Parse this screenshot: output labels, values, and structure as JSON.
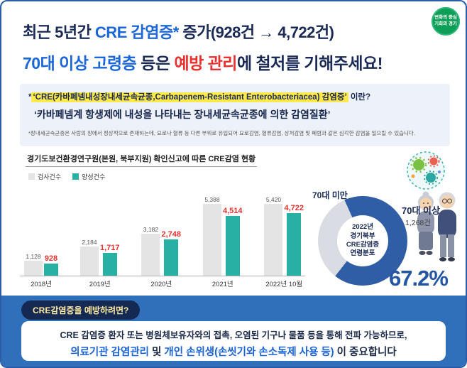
{
  "colors": {
    "navy": "#1a2a57",
    "accent_blue": "#1b66d9",
    "alert_red": "#e8312e",
    "teal": "#27b1a4",
    "bar_gray": "#e4e4e4",
    "donut_blue": "#2f5da6",
    "donut_gray": "#d9dde3",
    "bottom_bg": "#3070ba",
    "highlight_yellow": "#ffe94d"
  },
  "logo": {
    "line1": "변화의 중심",
    "line2": "기회의 경기"
  },
  "header": {
    "line1": {
      "prefix": "최근 5년간 ",
      "highlight": "CRE 감염증*",
      "mid": " 증가",
      "paren": "(928건 → 4,722건)"
    },
    "line2": {
      "blue": "70대 이상 고령층",
      "mid": " 등은 ",
      "red": "예방 관리",
      "tail": "에 철저를 기해주세요!"
    }
  },
  "definition_box": {
    "q_prefix": "*",
    "q_highlight": "‘CRE(카바페넴내성장내세균속균종,Carbapenem-Resistant Enterobacteriacea) 감염증’",
    "q_suffix": " 이란?",
    "answer": "‘카바페넴계 항생제에 내성을 나타내는 장내세균속균종에 의한 감염질환’",
    "footnote": "*장내세균속균종은 사람의 장에서 정상적으로 존재하는데, 요로나 혈류 등 다른 부위로 유입되어 요로감염, 혈류감염, 상처감염 및 폐렴과 같은 심각한 감염을 일으킬 수 있습니다."
  },
  "chart_data": [
    {
      "type": "bar",
      "title": "경기도보건환경연구원(본원, 북부지원) 확인신고에 따른 CRE감염 현황",
      "categories": [
        "2018년",
        "2019년",
        "2020년",
        "2021년",
        "2022년 10월"
      ],
      "series": [
        {
          "name": "검사건수",
          "color": "#e4e4e4",
          "values": [
            1128,
            2184,
            3182,
            5388,
            5420
          ],
          "labels": [
            "1,128",
            "2,184",
            "3,182",
            "5,388",
            "5,420"
          ]
        },
        {
          "name": "양성건수",
          "color": "#27b1a4",
          "values": [
            928,
            1717,
            2748,
            4514,
            4722
          ],
          "labels": [
            "928",
            "1,717",
            "2,748",
            "4,514",
            "4,722"
          ]
        }
      ],
      "ylim": [
        0,
        6000
      ],
      "grid": false,
      "legend_position": "top-left",
      "value_label_colors": {
        "검사건수": "#555555",
        "양성건수": "#e8312e"
      }
    },
    {
      "type": "pie",
      "title": "2022년 경기북부 CRE감염증 연령분포",
      "center_label": "2022년\n경기북부\nCRE감염증\n연령분포",
      "slices": [
        {
          "label": "70대 이상",
          "value": 67.2,
          "count_label": "1,268건",
          "color": "#2f5da6"
        },
        {
          "label": "70대 미만",
          "value": 32.8,
          "color": "#d9dde3"
        }
      ],
      "big_percent": "67.2%"
    }
  ],
  "prevention": {
    "pill_label": "CRE감염증을 예방하려면?",
    "line1": "CRE 감염증 환자 또는 병원체보유자와의 접촉, 오염된 기구나 물품 등을 통해 전파 가능하므로,",
    "line2_blue1": "의료기관 감염관리",
    "line2_mid": " 및 ",
    "line2_blue2": "개인 손위생(손씻기와 손소독제 사용 등)",
    "line2_tail": " 이 중요합니다"
  }
}
